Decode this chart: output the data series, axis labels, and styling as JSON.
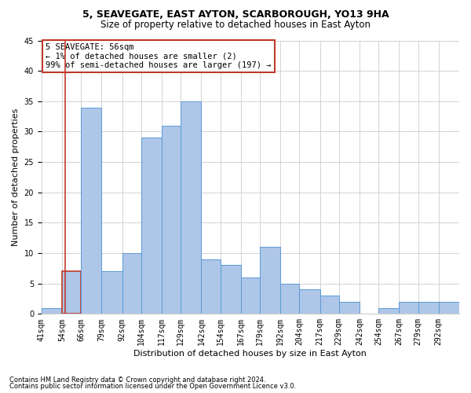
{
  "title1": "5, SEAVEGATE, EAST AYTON, SCARBOROUGH, YO13 9HA",
  "title2": "Size of property relative to detached houses in East Ayton",
  "xlabel": "Distribution of detached houses by size in East Ayton",
  "ylabel": "Number of detached properties",
  "footnote1": "Contains HM Land Registry data © Crown copyright and database right 2024.",
  "footnote2": "Contains public sector information licensed under the Open Government Licence v3.0.",
  "annotation_line1": "5 SEAVEGATE: 56sqm",
  "annotation_line2": "← 1% of detached houses are smaller (2)",
  "annotation_line3": "99% of semi-detached houses are larger (197) →",
  "property_sqm": 56,
  "bin_labels": [
    "41sqm",
    "54sqm",
    "66sqm",
    "79sqm",
    "92sqm",
    "104sqm",
    "117sqm",
    "129sqm",
    "142sqm",
    "154sqm",
    "167sqm",
    "179sqm",
    "192sqm",
    "204sqm",
    "217sqm",
    "229sqm",
    "242sqm",
    "254sqm",
    "267sqm",
    "279sqm",
    "292sqm"
  ],
  "bin_edges": [
    41,
    54,
    66,
    79,
    92,
    104,
    117,
    129,
    142,
    154,
    167,
    179,
    192,
    204,
    217,
    229,
    242,
    254,
    267,
    279,
    292,
    305
  ],
  "bar_values": [
    1,
    7,
    34,
    7,
    10,
    29,
    31,
    35,
    9,
    8,
    6,
    11,
    5,
    4,
    3,
    2,
    0,
    1,
    2,
    2,
    2
  ],
  "bar_color": "#aec6e8",
  "bar_edge_color": "#5b9bd5",
  "highlight_color": "#c0392b",
  "grid_color": "#cccccc",
  "background_color": "#ffffff",
  "ylim": [
    0,
    45
  ],
  "yticks": [
    0,
    5,
    10,
    15,
    20,
    25,
    30,
    35,
    40,
    45
  ],
  "title1_fontsize": 9,
  "title2_fontsize": 8.5,
  "ylabel_fontsize": 8,
  "xlabel_fontsize": 8,
  "tick_fontsize": 7,
  "footnote_fontsize": 6,
  "annotation_fontsize": 7.5
}
